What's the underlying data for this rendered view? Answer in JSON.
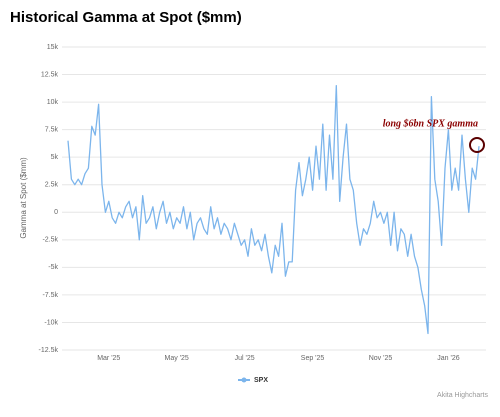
{
  "chart_data": {
    "type": "line",
    "title": "Historical Gamma at Spot ($mm)",
    "y_label": "Gamma at Spot ($mm)",
    "annotation": "long $6bn SPX gamma",
    "credit": "Akita Highcharts",
    "grid": true,
    "legend": "bottom",
    "ylim": [
      -12500,
      15000
    ],
    "yticks": [
      {
        "value": -12500,
        "label": "-12.5k"
      },
      {
        "value": -10000,
        "label": "-10k"
      },
      {
        "value": -7500,
        "label": "-7.5k"
      },
      {
        "value": -5000,
        "label": "-5k"
      },
      {
        "value": -2500,
        "label": "-2.5k"
      },
      0,
      {
        "value": 2500,
        "label": "2.5k"
      },
      {
        "value": 5000,
        "label": "5k"
      },
      {
        "value": 7500,
        "label": "7.5k"
      },
      {
        "value": 10000,
        "label": "10k"
      },
      {
        "value": 12500,
        "label": "12.5k"
      },
      {
        "value": 15000,
        "label": "15k"
      }
    ],
    "categories": [
      null,
      null,
      null,
      null,
      null,
      null,
      null,
      null,
      null,
      null,
      null,
      null,
      "Mar '25",
      null,
      null,
      null,
      null,
      null,
      null,
      null,
      null,
      null,
      null,
      null,
      null,
      null,
      null,
      null,
      null,
      null,
      null,
      null,
      "May '25",
      null,
      null,
      null,
      null,
      null,
      null,
      null,
      null,
      null,
      null,
      null,
      null,
      null,
      null,
      null,
      null,
      null,
      null,
      null,
      "Jul '25",
      null,
      null,
      null,
      null,
      null,
      null,
      null,
      null,
      null,
      null,
      null,
      null,
      null,
      null,
      null,
      null,
      null,
      null,
      null,
      "Sep '25",
      null,
      null,
      null,
      null,
      null,
      null,
      null,
      null,
      null,
      null,
      null,
      null,
      null,
      null,
      null,
      null,
      null,
      null,
      null,
      "Nov '25",
      null,
      null,
      null,
      null,
      null,
      null,
      null,
      null,
      null,
      null,
      null,
      null,
      null,
      null,
      null,
      null,
      null,
      null,
      null,
      "Jan '26",
      null,
      null,
      null,
      null,
      null,
      null,
      null,
      null,
      null
    ],
    "series": [
      {
        "name": "SPX",
        "color": "#7cb5ec",
        "values": [
          6500,
          3000,
          2500,
          3000,
          2500,
          3500,
          4000,
          7800,
          7000,
          9800,
          2500,
          0,
          1000,
          -500,
          -1000,
          0,
          -500,
          500,
          1000,
          -500,
          500,
          -2500,
          1500,
          -1000,
          -500,
          500,
          -1500,
          0,
          1000,
          -1000,
          0,
          -1500,
          -500,
          -1000,
          500,
          -1500,
          0,
          -2500,
          -1000,
          -500,
          -1500,
          -2000,
          500,
          -1500,
          -500,
          -2000,
          -1000,
          -1500,
          -2500,
          -1000,
          -2000,
          -3000,
          -2500,
          -4000,
          -1500,
          -3000,
          -2500,
          -3500,
          -2000,
          -4000,
          -5500,
          -3000,
          -4000,
          -1000,
          -5800,
          -4500,
          -4500,
          2000,
          4500,
          1500,
          3000,
          5000,
          2000,
          6000,
          3000,
          8000,
          2000,
          7000,
          3000,
          11500,
          1000,
          5000,
          8000,
          3000,
          2000,
          -1000,
          -3000,
          -1500,
          -2000,
          -1000,
          1000,
          -500,
          0,
          -1000,
          0,
          -3000,
          0,
          -3500,
          -1500,
          -2000,
          -4000,
          -2000,
          -4000,
          -5000,
          -7000,
          -8500,
          -11000,
          10500,
          3000,
          1000,
          -3000,
          4000,
          7500,
          2000,
          4000,
          2000,
          7000,
          3000,
          0,
          4000,
          3000,
          6000
        ]
      }
    ]
  }
}
